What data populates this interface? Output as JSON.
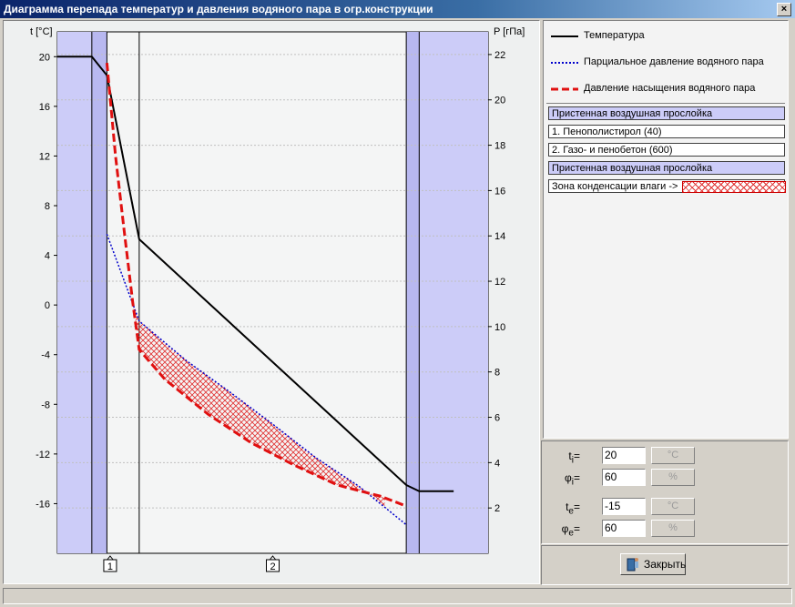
{
  "window": {
    "title": "Диаграмма перепада температур и давления водяного пара в огр.конструкции",
    "close_glyph": "×"
  },
  "chart_data": {
    "type": "line",
    "left_axis": {
      "label": "t [°C]",
      "ticks": [
        20,
        16,
        12,
        8,
        4,
        0,
        -4,
        -8,
        -12,
        -16
      ],
      "range": [
        -20,
        22
      ]
    },
    "right_axis": {
      "label": "P [гПа]",
      "ticks": [
        22,
        20,
        18,
        16,
        14,
        12,
        10,
        8,
        6,
        4,
        2
      ],
      "range": [
        0,
        23
      ]
    },
    "layer_markers": [
      "1",
      "2"
    ],
    "series": [
      {
        "name": "Температура",
        "axis": "left",
        "color": "#000000",
        "style": "solid",
        "points": [
          [
            0.0,
            20.0
          ],
          [
            0.08,
            20.0
          ],
          [
            0.115,
            18.5
          ],
          [
            0.19,
            5.3
          ],
          [
            0.81,
            -14.5
          ],
          [
            0.84,
            -15.0
          ],
          [
            0.92,
            -15.0
          ]
        ]
      },
      {
        "name": "Парциальное давление водяного пара",
        "axis": "left",
        "color": "#0000cc",
        "style": "dotted",
        "points": [
          [
            0.115,
            5.7
          ],
          [
            0.19,
            -1.3
          ],
          [
            0.3,
            -4.5
          ],
          [
            0.4,
            -7.0
          ],
          [
            0.5,
            -9.6
          ],
          [
            0.6,
            -12.3
          ],
          [
            0.7,
            -14.6
          ],
          [
            0.81,
            -17.7
          ]
        ]
      },
      {
        "name": "Давление насыщения водяного пара",
        "axis": "left",
        "color": "#e01010",
        "style": "dashed",
        "points": [
          [
            0.115,
            19.5
          ],
          [
            0.135,
            12.0
          ],
          [
            0.155,
            6.0
          ],
          [
            0.175,
            0.2
          ],
          [
            0.19,
            -3.6
          ],
          [
            0.25,
            -6.0
          ],
          [
            0.35,
            -8.8
          ],
          [
            0.45,
            -11.1
          ],
          [
            0.55,
            -12.9
          ],
          [
            0.65,
            -14.5
          ],
          [
            0.75,
            -15.4
          ],
          [
            0.81,
            -16.2
          ]
        ]
      }
    ],
    "condensation_zone": {
      "upper": "Парциальное давление водяного пара",
      "lower": "Давление насыщения водяного пара",
      "x_range": [
        0.175,
        0.76
      ]
    },
    "boundaries_x": [
      0.08,
      0.115,
      0.19,
      0.81,
      0.84
    ]
  },
  "legend": {
    "items": [
      {
        "label": "Температура",
        "color": "#000000",
        "style": "solid"
      },
      {
        "label": "Парциальное давление водяного пара",
        "color": "#0000cc",
        "style": "dotted"
      },
      {
        "label": "Давление насыщения водяного пара",
        "color": "#e01010",
        "style": "dashed"
      }
    ]
  },
  "layers": [
    {
      "label": "Пристенная воздушная прослойка",
      "kind": "air"
    },
    {
      "label": "1. Пенополистирол (40)",
      "kind": "material"
    },
    {
      "label": "2. Газо- и пенобетон (600)",
      "kind": "material"
    },
    {
      "label": "Пристенная воздушная прослойка",
      "kind": "air"
    },
    {
      "label": "Зона конденсации влаги ->",
      "kind": "zone"
    }
  ],
  "params": {
    "ti": {
      "sym": "t",
      "sub": "i",
      "value": "20",
      "unit": "°C"
    },
    "phii": {
      "sym": "φ",
      "sub": "i",
      "value": "60",
      "unit": "%"
    },
    "te": {
      "sym": "t",
      "sub": "e",
      "value": "-15",
      "unit": "°C"
    },
    "phie": {
      "sym": "φ",
      "sub": "e",
      "value": "60",
      "unit": "%"
    }
  },
  "buttons": {
    "close_label": "Закрыть"
  },
  "colors": {
    "air_layer": "#ccccf8",
    "condensation_hatch": "#e03030",
    "titlebar": "#0a246a"
  }
}
